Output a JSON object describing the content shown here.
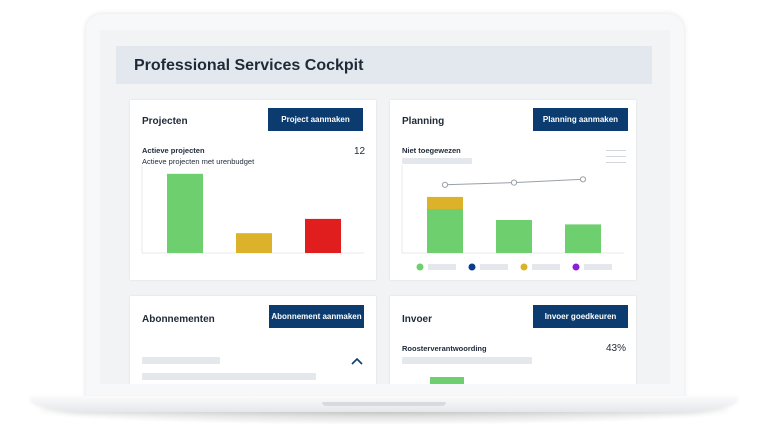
{
  "header": {
    "title": "Professional Services Cockpit"
  },
  "projecten": {
    "title": "Projecten",
    "button_label": "Project aanmaken",
    "metric_label": "Actieve projecten",
    "metric_sublabel": "Actieve projecten met urenbudget",
    "metric_value": "12"
  },
  "planning": {
    "title": "Planning",
    "button_label": "Planning aanmaken",
    "metric_label": "Niet toegewezen"
  },
  "abonnementen": {
    "title": "Abonnementen",
    "button_label": "Abonnement aanmaken",
    "collapse_icon": "chevron-up-icon"
  },
  "invoer": {
    "title": "Invoer",
    "button_label": "Invoer goedkeuren",
    "metric_label": "Roosterverantwoording",
    "metric_value": "43%"
  },
  "chart_data": [
    {
      "type": "bar",
      "categories": [
        "",
        "",
        ""
      ],
      "values": [
        72,
        18,
        31
      ],
      "colors": [
        "#6dcf6d",
        "#dbb22a",
        "#e01e1e"
      ],
      "ylim": [
        0,
        80
      ],
      "grid": false
    },
    {
      "type": "bar",
      "stacked": true,
      "categories": [
        "",
        "",
        ""
      ],
      "series": [
        {
          "values": [
            40,
            30,
            26
          ],
          "color": "#6dcf6d"
        },
        {
          "values": [
            11,
            0,
            0
          ],
          "color": "#dbb22a"
        }
      ],
      "line": {
        "values": [
          62,
          64,
          67
        ],
        "color": "#9aa0a8"
      },
      "legend_colors": [
        "#6dcf6d",
        "#0b3b8f",
        "#dbb22a",
        "#8b1fd6"
      ],
      "ylim": [
        0,
        80
      ],
      "grid": false
    }
  ],
  "colors": {
    "primary": "#0b3b6f",
    "header_bg": "#e3e8ef",
    "skeleton": "#e4e7ec"
  }
}
